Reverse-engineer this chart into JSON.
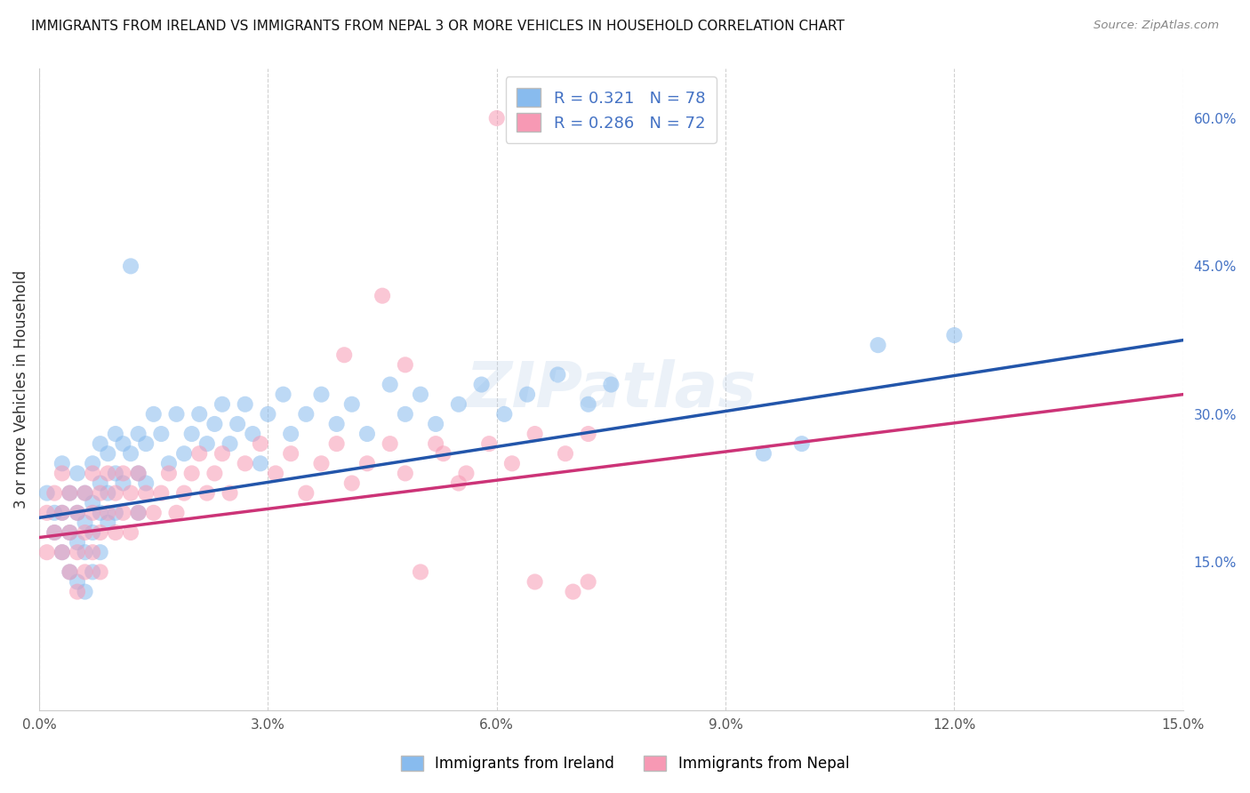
{
  "title": "IMMIGRANTS FROM IRELAND VS IMMIGRANTS FROM NEPAL 3 OR MORE VEHICLES IN HOUSEHOLD CORRELATION CHART",
  "source": "Source: ZipAtlas.com",
  "ylabel": "3 or more Vehicles in Household",
  "R_ireland": 0.321,
  "N_ireland": 78,
  "R_nepal": 0.286,
  "N_nepal": 72,
  "color_ireland": "#88bbee",
  "color_nepal": "#f799b4",
  "color_ireland_line": "#2255aa",
  "color_nepal_line": "#cc3377",
  "color_legend_text_blue": "#4472c4",
  "xmin": 0.0,
  "xmax": 0.15,
  "ymin": 0.0,
  "ymax": 0.65,
  "ytick_vals": [
    0.15,
    0.3,
    0.45,
    0.6
  ],
  "ytick_labels": [
    "15.0%",
    "30.0%",
    "45.0%",
    "60.0%"
  ],
  "xtick_vals": [
    0.0,
    0.03,
    0.06,
    0.09,
    0.12,
    0.15
  ],
  "xtick_labels": [
    "0.0%",
    "3.0%",
    "6.0%",
    "9.0%",
    "12.0%",
    "15.0%"
  ],
  "legend_label_ireland": "Immigrants from Ireland",
  "legend_label_nepal": "Immigrants from Nepal",
  "watermark": "ZIPatlas",
  "background_color": "#ffffff",
  "ireland_x": [
    0.001,
    0.002,
    0.002,
    0.003,
    0.003,
    0.003,
    0.004,
    0.004,
    0.004,
    0.005,
    0.005,
    0.005,
    0.005,
    0.006,
    0.006,
    0.006,
    0.006,
    0.007,
    0.007,
    0.007,
    0.007,
    0.008,
    0.008,
    0.008,
    0.008,
    0.009,
    0.009,
    0.009,
    0.01,
    0.01,
    0.01,
    0.011,
    0.011,
    0.012,
    0.012,
    0.013,
    0.013,
    0.013,
    0.014,
    0.014,
    0.015,
    0.016,
    0.017,
    0.018,
    0.019,
    0.02,
    0.021,
    0.022,
    0.023,
    0.024,
    0.025,
    0.026,
    0.027,
    0.028,
    0.029,
    0.03,
    0.032,
    0.033,
    0.035,
    0.037,
    0.039,
    0.041,
    0.043,
    0.046,
    0.048,
    0.05,
    0.052,
    0.055,
    0.058,
    0.061,
    0.064,
    0.068,
    0.072,
    0.075,
    0.095,
    0.1,
    0.11,
    0.12
  ],
  "ireland_y": [
    0.22,
    0.2,
    0.18,
    0.25,
    0.2,
    0.16,
    0.22,
    0.18,
    0.14,
    0.24,
    0.2,
    0.17,
    0.13,
    0.22,
    0.19,
    0.16,
    0.12,
    0.25,
    0.21,
    0.18,
    0.14,
    0.27,
    0.23,
    0.2,
    0.16,
    0.26,
    0.22,
    0.19,
    0.28,
    0.24,
    0.2,
    0.27,
    0.23,
    0.45,
    0.26,
    0.28,
    0.24,
    0.2,
    0.27,
    0.23,
    0.3,
    0.28,
    0.25,
    0.3,
    0.26,
    0.28,
    0.3,
    0.27,
    0.29,
    0.31,
    0.27,
    0.29,
    0.31,
    0.28,
    0.25,
    0.3,
    0.32,
    0.28,
    0.3,
    0.32,
    0.29,
    0.31,
    0.28,
    0.33,
    0.3,
    0.32,
    0.29,
    0.31,
    0.33,
    0.3,
    0.32,
    0.34,
    0.31,
    0.33,
    0.26,
    0.27,
    0.37,
    0.38
  ],
  "nepal_x": [
    0.001,
    0.001,
    0.002,
    0.002,
    0.003,
    0.003,
    0.003,
    0.004,
    0.004,
    0.004,
    0.005,
    0.005,
    0.005,
    0.006,
    0.006,
    0.006,
    0.007,
    0.007,
    0.007,
    0.008,
    0.008,
    0.008,
    0.009,
    0.009,
    0.01,
    0.01,
    0.011,
    0.011,
    0.012,
    0.012,
    0.013,
    0.013,
    0.014,
    0.015,
    0.016,
    0.017,
    0.018,
    0.019,
    0.02,
    0.021,
    0.022,
    0.023,
    0.024,
    0.025,
    0.027,
    0.029,
    0.031,
    0.033,
    0.035,
    0.037,
    0.039,
    0.041,
    0.043,
    0.046,
    0.048,
    0.05,
    0.053,
    0.056,
    0.059,
    0.062,
    0.065,
    0.069,
    0.072,
    0.04,
    0.045,
    0.048,
    0.052,
    0.055,
    0.06,
    0.065,
    0.07,
    0.072
  ],
  "nepal_y": [
    0.2,
    0.16,
    0.22,
    0.18,
    0.24,
    0.2,
    0.16,
    0.22,
    0.18,
    0.14,
    0.2,
    0.16,
    0.12,
    0.22,
    0.18,
    0.14,
    0.24,
    0.2,
    0.16,
    0.22,
    0.18,
    0.14,
    0.24,
    0.2,
    0.22,
    0.18,
    0.24,
    0.2,
    0.22,
    0.18,
    0.24,
    0.2,
    0.22,
    0.2,
    0.22,
    0.24,
    0.2,
    0.22,
    0.24,
    0.26,
    0.22,
    0.24,
    0.26,
    0.22,
    0.25,
    0.27,
    0.24,
    0.26,
    0.22,
    0.25,
    0.27,
    0.23,
    0.25,
    0.27,
    0.24,
    0.14,
    0.26,
    0.24,
    0.27,
    0.25,
    0.28,
    0.26,
    0.28,
    0.36,
    0.42,
    0.35,
    0.27,
    0.23,
    0.6,
    0.13,
    0.12,
    0.13
  ]
}
